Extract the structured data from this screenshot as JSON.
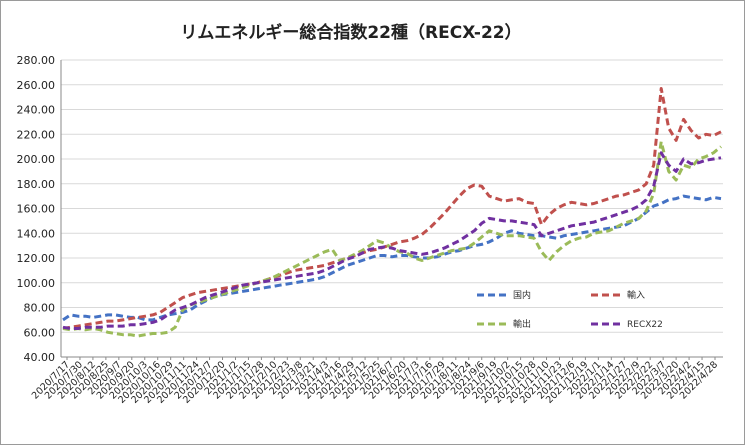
{
  "chart_data": {
    "type": "line",
    "title": "リムエネルギー総合指数22種（RECX-22）",
    "xlabel": "",
    "ylabel": "",
    "ylim": [
      40,
      280
    ],
    "yticks": [
      "40.00",
      "60.00",
      "80.00",
      "100.00",
      "120.00",
      "140.00",
      "160.00",
      "180.00",
      "200.00",
      "220.00",
      "240.00",
      "260.00",
      "280.00"
    ],
    "xtick_labels": [
      "2020/7/17",
      "2020/7/30",
      "2020/8/12",
      "2020/8/25",
      "2020/9/7",
      "2020/9/20",
      "2020/10/3",
      "2020/10/16",
      "2020/10/29",
      "2020/11/11",
      "2020/11/24",
      "2020/12/7",
      "2020/12/20",
      "2021/1/2",
      "2021/1/15",
      "2021/1/28",
      "2021/2/10",
      "2021/2/23",
      "2021/3/8",
      "2021/3/21",
      "2021/4/3",
      "2021/4/16",
      "2021/4/29",
      "2021/5/12",
      "2021/5/25",
      "2021/6/7",
      "2021/6/20",
      "2021/7/3",
      "2021/7/16",
      "2021/7/29",
      "2021/8/11",
      "2021/8/24",
      "2021/9/6",
      "2021/9/19",
      "2021/10/2",
      "2021/10/15",
      "2021/10/28",
      "2021/11/10",
      "2021/11/23",
      "2021/12/6",
      "2021/12/19",
      "2022/1/1",
      "2022/1/14",
      "2022/1/27",
      "2022/2/9",
      "2022/2/22",
      "2022/3/7",
      "2022/3/20",
      "2022/4/2",
      "2022/4/15",
      "2022/4/28"
    ],
    "grid": true,
    "legend_position": "bottom-right",
    "series": [
      {
        "name": "国内",
        "color": "#4472C4",
        "values": [
          70,
          74,
          73,
          73,
          72,
          73,
          74,
          74,
          73,
          72,
          72,
          70,
          70,
          72,
          74,
          75,
          76,
          78,
          82,
          85,
          88,
          90,
          91,
          92,
          93,
          94,
          95,
          96,
          97,
          98,
          99,
          100,
          101,
          102,
          103,
          105,
          108,
          111,
          114,
          116,
          118,
          120,
          122,
          122,
          121,
          122,
          122,
          121,
          120,
          120,
          121,
          123,
          125,
          126,
          128,
          130,
          131,
          133,
          136,
          140,
          142,
          140,
          139,
          138,
          138,
          137,
          136,
          138,
          139,
          140,
          141,
          142,
          143,
          144,
          145,
          146,
          149,
          152,
          157,
          162,
          164,
          167,
          168,
          170,
          169,
          168,
          167,
          169,
          168
        ]
      },
      {
        "name": "輸入",
        "color": "#C0504D",
        "values": [
          63,
          64,
          65,
          66,
          67,
          68,
          69,
          69,
          70,
          71,
          72,
          73,
          74,
          76,
          80,
          84,
          88,
          90,
          92,
          93,
          94,
          95,
          96,
          97,
          98,
          99,
          100,
          102,
          104,
          106,
          108,
          110,
          111,
          112,
          113,
          114,
          116,
          118,
          120,
          122,
          124,
          126,
          127,
          129,
          131,
          133,
          134,
          136,
          139,
          144,
          150,
          156,
          163,
          170,
          176,
          179,
          178,
          170,
          168,
          166,
          167,
          168,
          165,
          164,
          147,
          155,
          160,
          163,
          165,
          164,
          163,
          164,
          166,
          168,
          170,
          171,
          173,
          175,
          180,
          195,
          257,
          225,
          215,
          232,
          223,
          217,
          220,
          219,
          222
        ]
      },
      {
        "name": "輸出",
        "color": "#9BBB59",
        "values": [
          63,
          62,
          63,
          62,
          63,
          62,
          60,
          59,
          58,
          58,
          57,
          58,
          59,
          59,
          60,
          64,
          78,
          82,
          84,
          86,
          88,
          90,
          92,
          94,
          96,
          98,
          100,
          102,
          104,
          107,
          110,
          113,
          116,
          119,
          122,
          125,
          127,
          118,
          120,
          123,
          126,
          130,
          134,
          132,
          128,
          125,
          124,
          120,
          118,
          120,
          122,
          124,
          126,
          127,
          128,
          132,
          137,
          142,
          140,
          138,
          138,
          138,
          137,
          136,
          125,
          118,
          125,
          130,
          134,
          136,
          137,
          140,
          141,
          142,
          145,
          148,
          150,
          152,
          158,
          172,
          214,
          190,
          183,
          195,
          193,
          200,
          202,
          205,
          210
        ]
      },
      {
        "name": "RECX22",
        "color": "#7030A0",
        "values": [
          64,
          63,
          63,
          64,
          64,
          64,
          65,
          65,
          65,
          66,
          66,
          67,
          68,
          70,
          74,
          78,
          80,
          82,
          85,
          88,
          90,
          92,
          94,
          96,
          98,
          99,
          100,
          101,
          102,
          103,
          104,
          105,
          106,
          107,
          108,
          110,
          113,
          116,
          119,
          121,
          124,
          127,
          128,
          129,
          128,
          126,
          125,
          124,
          123,
          124,
          126,
          128,
          131,
          134,
          138,
          142,
          148,
          152,
          151,
          150,
          150,
          149,
          148,
          147,
          138,
          140,
          142,
          144,
          146,
          147,
          148,
          149,
          151,
          153,
          155,
          157,
          159,
          162,
          167,
          178,
          205,
          195,
          190,
          200,
          196,
          197,
          199,
          200,
          201
        ]
      }
    ]
  }
}
